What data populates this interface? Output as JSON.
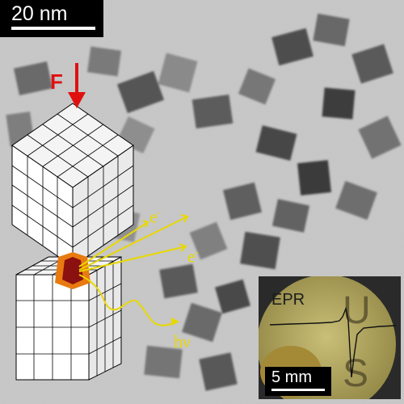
{
  "figure": {
    "scale_bar_label": "20 nm",
    "force_label": "F",
    "electron_symbol": "e",
    "electron_charge": "-",
    "photon_label": "hν",
    "colors": {
      "force_arrow": "#e01010",
      "emission": "#e8d800",
      "contact_hot": "#8b1010",
      "contact_warm": "#e87a10"
    }
  },
  "inset": {
    "label": "EPR",
    "scale_bar_label": "5 mm",
    "letters": [
      "U",
      "S"
    ]
  }
}
